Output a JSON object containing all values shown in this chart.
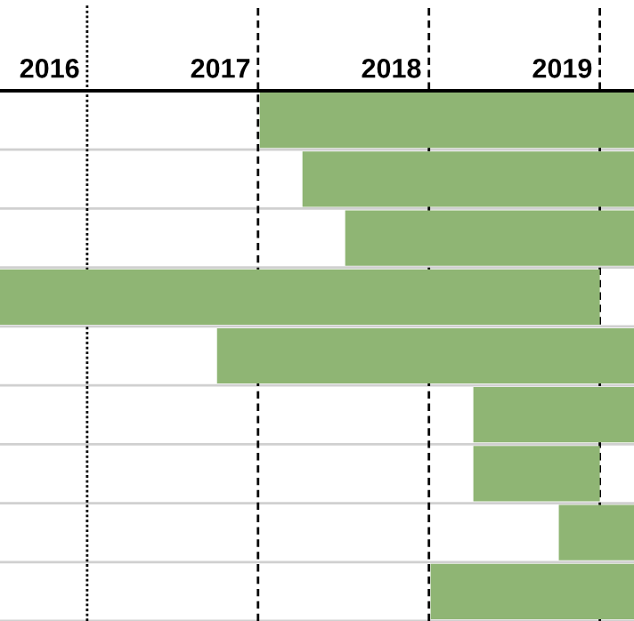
{
  "chart_data": {
    "type": "bar",
    "orientation": "horizontal",
    "categories": [
      null,
      null,
      null,
      null,
      null,
      null,
      null,
      null,
      null
    ],
    "base": [
      2017.23,
      2017.48,
      2017.73,
      2015.71,
      2016.98,
      2018.48,
      2018.48,
      2018.98,
      2018.23
    ],
    "values": [
      2.19,
      1.94,
      1.69,
      3.51,
      2.44,
      0.94,
      0.74,
      0.44,
      1.19
    ],
    "color": "#8fb574",
    "xlim": [
      2015.71,
      2019.42
    ],
    "xticks": [
      2016,
      2017,
      2018,
      2019
    ],
    "ref_lines": [
      {
        "axis": "x",
        "value": 2016.22,
        "line_style": "dotted",
        "color": "#000000"
      },
      {
        "axis": "x",
        "value": 2017.22,
        "line_style": "dashed",
        "color": "#000000"
      },
      {
        "axis": "x",
        "value": 2018.22,
        "line_style": "dashed",
        "color": "#000000"
      },
      {
        "axis": "x",
        "value": 2019.22,
        "line_style": "dashed",
        "color": "#000000"
      }
    ],
    "grid": "y"
  }
}
